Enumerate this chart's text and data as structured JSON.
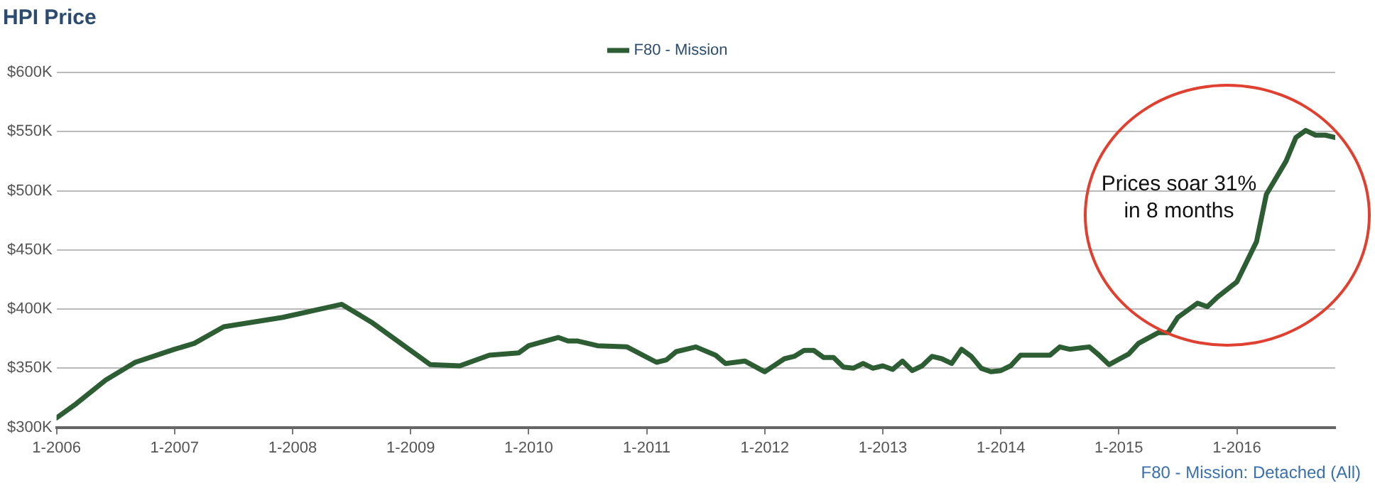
{
  "chart_data": {
    "type": "line",
    "title": "HPI Price",
    "x": [
      "2006-01",
      "2006-03",
      "2006-06",
      "2006-09",
      "2007-01",
      "2007-03",
      "2007-06",
      "2007-12",
      "2008-06",
      "2008-09",
      "2008-12",
      "2009-03",
      "2009-06",
      "2009-09",
      "2009-12",
      "2010-01",
      "2010-04",
      "2010-05",
      "2010-06",
      "2010-08",
      "2010-11",
      "2011-02",
      "2011-03",
      "2011-04",
      "2011-06",
      "2011-08",
      "2011-09",
      "2011-11",
      "2012-01",
      "2012-03",
      "2012-04",
      "2012-05",
      "2012-06",
      "2012-07",
      "2012-08",
      "2012-09",
      "2012-10",
      "2012-11",
      "2012-12",
      "2013-01",
      "2013-02",
      "2013-03",
      "2013-04",
      "2013-05",
      "2013-06",
      "2013-07",
      "2013-08",
      "2013-09",
      "2013-10",
      "2013-11",
      "2013-12",
      "2014-01",
      "2014-02",
      "2014-03",
      "2014-04",
      "2014-06",
      "2014-07",
      "2014-08",
      "2014-10",
      "2014-11",
      "2014-12",
      "2015-02",
      "2015-03",
      "2015-05",
      "2015-06",
      "2015-07",
      "2015-09",
      "2015-10",
      "2015-11",
      "2016-01",
      "2016-03",
      "2016-04",
      "2016-06",
      "2016-07",
      "2016-08",
      "2016-09",
      "2016-10",
      "2016-11"
    ],
    "series": [
      {
        "name": "F80 - Mission",
        "color": "#2d5e33",
        "values": [
          308000,
          320000,
          340000,
          355000,
          366000,
          371000,
          385000,
          393000,
          404000,
          389000,
          371000,
          353000,
          352000,
          361000,
          363000,
          369000,
          376000,
          373000,
          373000,
          369000,
          368000,
          355000,
          357000,
          364000,
          368000,
          361000,
          354000,
          356000,
          347000,
          358000,
          360000,
          365000,
          365000,
          359000,
          359000,
          351000,
          350000,
          354000,
          350000,
          352000,
          349000,
          356000,
          348000,
          352000,
          360000,
          358000,
          354000,
          366000,
          360000,
          350000,
          347000,
          348000,
          352000,
          361000,
          361000,
          361000,
          368000,
          366000,
          368000,
          361000,
          353000,
          362000,
          371000,
          380000,
          380000,
          393000,
          405000,
          402000,
          410000,
          423000,
          457000,
          497000,
          525000,
          545000,
          551000,
          547000,
          547000,
          545000
        ]
      }
    ],
    "xlim": [
      "2006-01",
      "2016-11"
    ],
    "xticks": [
      {
        "value": "2006-01",
        "label": "1-2006"
      },
      {
        "value": "2007-01",
        "label": "1-2007"
      },
      {
        "value": "2008-01",
        "label": "1-2008"
      },
      {
        "value": "2009-01",
        "label": "1-2009"
      },
      {
        "value": "2010-01",
        "label": "1-2010"
      },
      {
        "value": "2011-01",
        "label": "1-2011"
      },
      {
        "value": "2012-01",
        "label": "1-2012"
      },
      {
        "value": "2013-01",
        "label": "1-2013"
      },
      {
        "value": "2014-01",
        "label": "1-2014"
      },
      {
        "value": "2015-01",
        "label": "1-2015"
      },
      {
        "value": "2016-01",
        "label": "1-2016"
      }
    ],
    "ylim": [
      300000,
      600000
    ],
    "yticks": [
      {
        "value": 300000,
        "label": "$300K"
      },
      {
        "value": 350000,
        "label": "$350K"
      },
      {
        "value": 400000,
        "label": "$400K"
      },
      {
        "value": 450000,
        "label": "$450K"
      },
      {
        "value": 500000,
        "label": "$500K"
      },
      {
        "value": 550000,
        "label": "$550K"
      },
      {
        "value": 600000,
        "label": "$600K"
      }
    ],
    "grid": "y",
    "legend": "top",
    "marker": "none",
    "line_style": "solid",
    "annotations": [
      "Prices soar 31%\nin 8 months",
      "F80 - Mission: Detached (All)"
    ]
  }
}
